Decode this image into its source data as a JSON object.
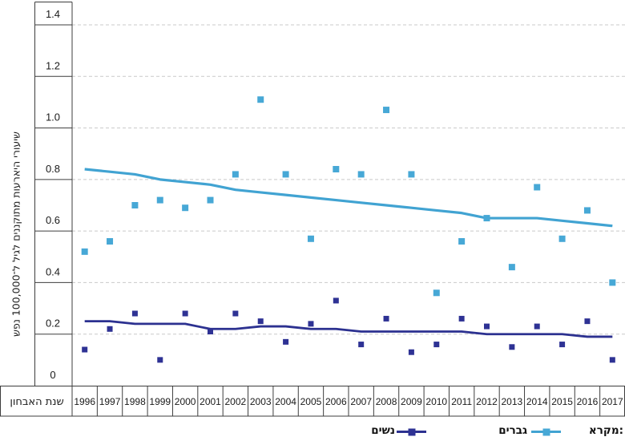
{
  "chart_data": {
    "type": "scatter",
    "title": "",
    "xlabel": "שנת האבחון",
    "ylabel": "שיעורי היארעות מתוקננים לגיל ל־100,000 נפש",
    "years": [
      "1996",
      "1997",
      "1998",
      "1999",
      "2000",
      "2001",
      "2002",
      "2003",
      "2004",
      "2005",
      "2006",
      "2007",
      "2008",
      "2009",
      "2010",
      "2011",
      "2012",
      "2013",
      "2014",
      "2015",
      "2016",
      "2017"
    ],
    "y_ticks": [
      0,
      0.2,
      0.4,
      0.6,
      0.8,
      1.0,
      1.2,
      1.4
    ],
    "y_tick_labels": [
      "0",
      "0.2",
      "0.4",
      "0.6",
      "0.8",
      "1.0",
      "1.2",
      "1.4"
    ],
    "ylim": [
      0,
      1.5
    ],
    "grid": "horizontal-dashed",
    "legend": {
      "title": "מקרא:",
      "position": "bottom"
    },
    "series": [
      {
        "name": "גברים",
        "marker": "square",
        "color": "#47a8d6",
        "line_color": "#41a3d2",
        "scatter": [
          0.52,
          0.56,
          0.7,
          0.72,
          0.69,
          0.72,
          0.82,
          1.11,
          0.82,
          0.57,
          0.84,
          0.82,
          1.07,
          0.82,
          0.36,
          0.56,
          0.65,
          0.46,
          0.77,
          0.57,
          0.68,
          0.4
        ],
        "trend": [
          0.84,
          0.83,
          0.82,
          0.8,
          0.79,
          0.78,
          0.76,
          0.75,
          0.74,
          0.73,
          0.72,
          0.71,
          0.7,
          0.69,
          0.68,
          0.67,
          0.65,
          0.65,
          0.65,
          0.64,
          0.63,
          0.62
        ]
      },
      {
        "name": "נשים",
        "marker": "square",
        "color": "#2e3294",
        "line_color": "#2c3190",
        "scatter": [
          0.14,
          0.22,
          0.28,
          0.1,
          0.28,
          0.21,
          0.28,
          0.25,
          0.17,
          0.24,
          0.33,
          0.16,
          0.26,
          0.13,
          0.16,
          0.26,
          0.23,
          0.15,
          0.23,
          0.16,
          0.25,
          0.1
        ],
        "trend": [
          0.25,
          0.25,
          0.24,
          0.24,
          0.24,
          0.22,
          0.22,
          0.23,
          0.23,
          0.22,
          0.22,
          0.21,
          0.21,
          0.21,
          0.21,
          0.21,
          0.2,
          0.2,
          0.2,
          0.2,
          0.19,
          0.19
        ]
      }
    ]
  },
  "colors": {
    "grid": "#c9c9c9",
    "axis": "#3d3d3d",
    "text": "#1a1a1a"
  }
}
